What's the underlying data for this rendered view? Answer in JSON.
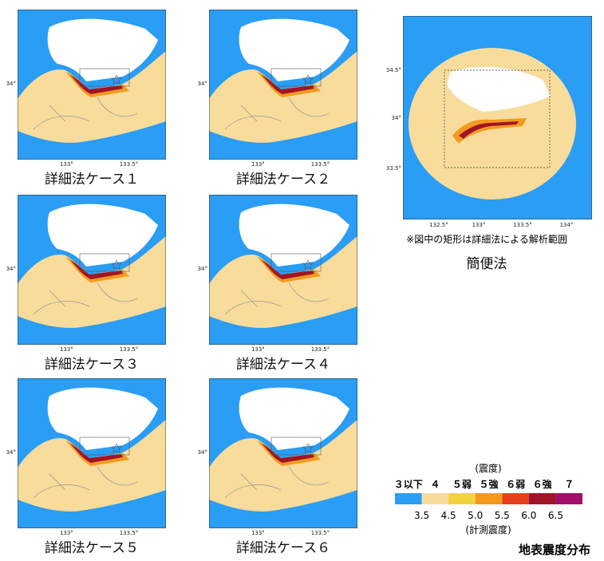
{
  "panels": [
    {
      "caption": "詳細法ケース１",
      "yticks": [
        "34°"
      ],
      "xticks": [
        "133°",
        "133.5°"
      ]
    },
    {
      "caption": "詳細法ケース２",
      "yticks": [
        "34°"
      ],
      "xticks": [
        "133°",
        "133.5°"
      ]
    },
    {
      "caption": "詳細法ケース３",
      "yticks": [
        "34°"
      ],
      "xticks": [
        "133°",
        "133.5°"
      ]
    },
    {
      "caption": "詳細法ケース４",
      "yticks": [
        "34°"
      ],
      "xticks": [
        "133°",
        "133.5°"
      ]
    },
    {
      "caption": "詳細法ケース５",
      "yticks": [
        "34°"
      ],
      "xticks": [
        "133°",
        "133.5°"
      ]
    },
    {
      "caption": "詳細法ケース６",
      "yticks": [
        "34°"
      ],
      "xticks": [
        "133°",
        "133.5°"
      ]
    }
  ],
  "simple": {
    "caption": "簡便法",
    "note": "※図中の矩形は詳細法による解析範囲",
    "yticks": [
      "34.5°",
      "34°",
      "33.5°"
    ],
    "xticks": [
      "132.5°",
      "133°",
      "133.5°",
      "134°"
    ]
  },
  "legend": {
    "heading": "(震度)",
    "classes": [
      "３以下",
      "４",
      "５弱",
      "５強",
      "６弱",
      "６強",
      "７"
    ],
    "colors": [
      "#2a9df4",
      "#f7dc9c",
      "#f4d23c",
      "#f39a1c",
      "#e8401c",
      "#a01428",
      "#a0106a"
    ],
    "values": [
      "3.5",
      "4.5",
      "5.0",
      "5.5",
      "6.0",
      "6.5"
    ],
    "unit": "(計測震度)",
    "title": "地表震度分布"
  }
}
